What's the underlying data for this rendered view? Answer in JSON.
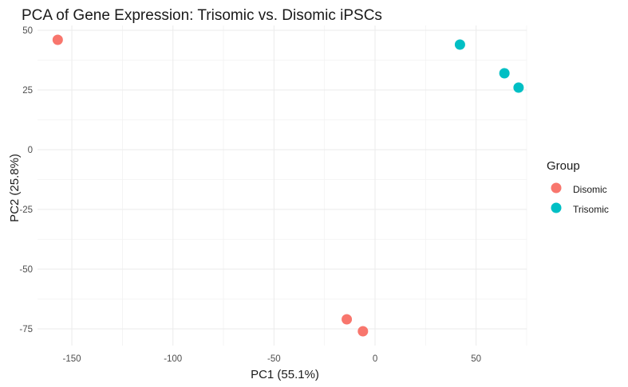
{
  "chart_data": {
    "type": "scatter",
    "title": "PCA of Gene Expression: Trisomic vs. Disomic iPSCs",
    "xlabel": "PC1 (55.1%)",
    "ylabel": "PC2 (25.8%)",
    "xlim": [
      -167,
      75
    ],
    "ylim": [
      -82,
      52
    ],
    "xticks": [
      -150,
      -100,
      -50,
      0,
      50
    ],
    "yticks": [
      50,
      25,
      0,
      -25,
      -50,
      -75
    ],
    "grid": true,
    "legend": {
      "title": "Group",
      "placement": "right",
      "entries": [
        "Disomic",
        "Trisomic"
      ]
    },
    "series": [
      {
        "name": "Disomic",
        "color": "#F8766D",
        "points": [
          {
            "x": -157,
            "y": 46
          },
          {
            "x": -14,
            "y": -71
          },
          {
            "x": -6,
            "y": -76
          }
        ]
      },
      {
        "name": "Trisomic",
        "color": "#00BFC4",
        "points": [
          {
            "x": 42,
            "y": 44
          },
          {
            "x": 64,
            "y": 32
          },
          {
            "x": 71,
            "y": 26
          }
        ]
      }
    ]
  }
}
